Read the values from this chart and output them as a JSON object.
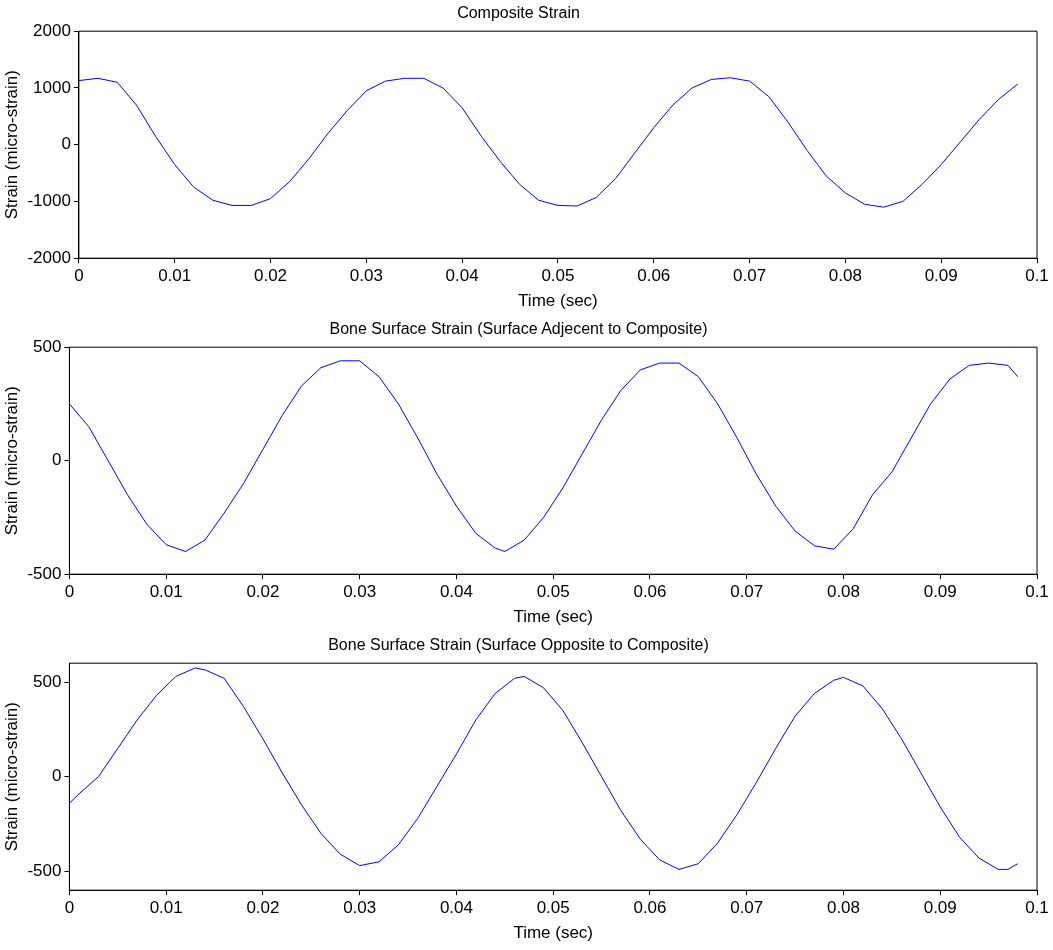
{
  "chart_data": [
    {
      "type": "line",
      "title": "Composite Strain",
      "xlabel": "Time (sec)",
      "ylabel": "Strain (micro-strain)",
      "xlim": [
        0,
        0.1
      ],
      "xticks": [
        0,
        0.01,
        0.02,
        0.03,
        0.04,
        0.05,
        0.06,
        0.07,
        0.08,
        0.09,
        0.1
      ],
      "ylim": [
        -2000,
        2000
      ],
      "yticks": [
        -2000,
        -1000,
        0,
        1000,
        2000
      ],
      "grid": false,
      "legend": false,
      "marker": "none",
      "line_style": "solid",
      "series": [
        {
          "color": "#0000ff",
          "x": [
            0,
            0.002,
            0.004,
            0.006,
            0.008,
            0.01,
            0.012,
            0.014,
            0.016,
            0.018,
            0.02,
            0.022,
            0.024,
            0.026,
            0.028,
            0.03,
            0.032,
            0.034,
            0.036,
            0.038,
            0.04,
            0.042,
            0.044,
            0.046,
            0.048,
            0.05,
            0.052,
            0.054,
            0.056,
            0.058,
            0.06,
            0.062,
            0.064,
            0.066,
            0.068,
            0.07,
            0.072,
            0.074,
            0.076,
            0.078,
            0.08,
            0.082,
            0.084,
            0.086,
            0.088,
            0.09,
            0.092,
            0.094,
            0.096,
            0.098
          ],
          "values": [
            1130,
            1170,
            1100,
            700,
            150,
            -350,
            -750,
            -980,
            -1070,
            -1070,
            -950,
            -650,
            -250,
            200,
            600,
            950,
            1120,
            1170,
            1170,
            1000,
            650,
            150,
            -300,
            -700,
            -980,
            -1070,
            -1080,
            -930,
            -600,
            -150,
            300,
            700,
            1000,
            1150,
            1180,
            1120,
            850,
            400,
            -100,
            -550,
            -850,
            -1050,
            -1100,
            -1000,
            -700,
            -350,
            50,
            450,
            800,
            1070
          ]
        }
      ]
    },
    {
      "type": "line",
      "title": "Bone Surface Strain (Surface Adjecent to Composite)",
      "xlabel": "Time (sec)",
      "ylabel": "Strain (micro-strain)",
      "xlim": [
        0,
        0.1
      ],
      "xticks": [
        0,
        0.01,
        0.02,
        0.03,
        0.04,
        0.05,
        0.06,
        0.07,
        0.08,
        0.09,
        0.1
      ],
      "ylim": [
        -500,
        500
      ],
      "yticks": [
        -500,
        0,
        500
      ],
      "grid": false,
      "legend": false,
      "marker": "none",
      "line_style": "solid",
      "series": [
        {
          "color": "#0000ff",
          "x": [
            0,
            0.002,
            0.004,
            0.006,
            0.008,
            0.01,
            0.012,
            0.014,
            0.016,
            0.018,
            0.02,
            0.022,
            0.024,
            0.026,
            0.028,
            0.03,
            0.032,
            0.034,
            0.036,
            0.038,
            0.04,
            0.042,
            0.044,
            0.045,
            0.047,
            0.049,
            0.051,
            0.053,
            0.055,
            0.057,
            0.059,
            0.061,
            0.063,
            0.065,
            0.067,
            0.069,
            0.071,
            0.073,
            0.075,
            0.077,
            0.079,
            0.081,
            0.083,
            0.085,
            0.087,
            0.089,
            0.091,
            0.093,
            0.095,
            0.097,
            0.098
          ],
          "values": [
            250,
            150,
            0,
            -150,
            -280,
            -370,
            -400,
            -350,
            -230,
            -100,
            50,
            200,
            330,
            410,
            440,
            440,
            370,
            250,
            100,
            -60,
            -200,
            -320,
            -385,
            -400,
            -350,
            -250,
            -120,
            30,
            180,
            310,
            400,
            430,
            430,
            370,
            250,
            100,
            -60,
            -200,
            -310,
            -375,
            -390,
            -300,
            -150,
            -50,
            100,
            250,
            360,
            420,
            430,
            420,
            370
          ]
        }
      ]
    },
    {
      "type": "line",
      "title": "Bone Surface Strain (Surface Opposite to Composite)",
      "xlabel": "Time (sec)",
      "ylabel": "Strain (micro-strain)",
      "xlim": [
        0,
        0.1
      ],
      "xticks": [
        0,
        0.01,
        0.02,
        0.03,
        0.04,
        0.05,
        0.06,
        0.07,
        0.08,
        0.09,
        0.1
      ],
      "ylim": [
        -600,
        600
      ],
      "yticks": [
        -500,
        0,
        500
      ],
      "grid": false,
      "legend": false,
      "marker": "none",
      "line_style": "solid",
      "series": [
        {
          "color": "#0000ff",
          "x": [
            0,
            0.001,
            0.003,
            0.005,
            0.007,
            0.009,
            0.011,
            0.013,
            0.014,
            0.016,
            0.018,
            0.02,
            0.022,
            0.024,
            0.026,
            0.028,
            0.03,
            0.032,
            0.034,
            0.036,
            0.038,
            0.04,
            0.042,
            0.044,
            0.046,
            0.047,
            0.049,
            0.051,
            0.053,
            0.055,
            0.057,
            0.059,
            0.061,
            0.063,
            0.065,
            0.067,
            0.069,
            0.071,
            0.073,
            0.075,
            0.077,
            0.079,
            0.08,
            0.082,
            0.084,
            0.086,
            0.088,
            0.09,
            0.092,
            0.094,
            0.096,
            0.097,
            0.098
          ],
          "values": [
            -140,
            -90,
            0,
            150,
            300,
            430,
            530,
            575,
            565,
            520,
            370,
            200,
            20,
            -150,
            -300,
            -410,
            -470,
            -450,
            -360,
            -220,
            -50,
            120,
            300,
            440,
            520,
            530,
            470,
            350,
            180,
            0,
            -180,
            -330,
            -440,
            -490,
            -460,
            -350,
            -200,
            -30,
            150,
            320,
            440,
            510,
            525,
            480,
            360,
            200,
            20,
            -160,
            -320,
            -430,
            -490,
            -490,
            -460
          ]
        }
      ]
    }
  ]
}
